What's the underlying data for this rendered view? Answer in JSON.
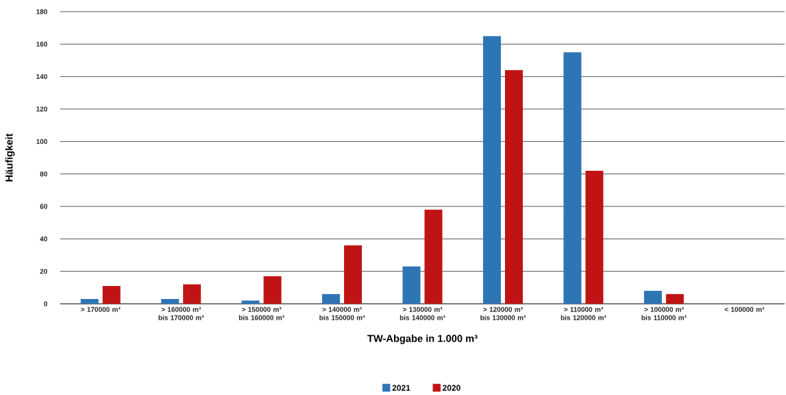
{
  "chart_data": {
    "type": "bar",
    "xlabel": "TW-Abgabe in 1.000 m³",
    "ylabel": "Häufigkeit",
    "categories": [
      "> 170000 m³",
      "> 160000 m³ bis 170000 m³",
      "> 150000 m³ bis 160000 m³",
      "> 140000 m³ bis 150000 m³",
      "> 130000 m³ bis 140000 m³",
      "> 120000 m³ bis 130000 m³",
      "> 110000 m³ bis 120000 m³",
      "> 100000 m³ bis 110000 m³",
      "< 100000 m³"
    ],
    "series": [
      {
        "name": "2021",
        "color": "#2e75b6",
        "values": [
          3,
          3,
          2,
          6,
          23,
          165,
          155,
          8,
          0
        ]
      },
      {
        "name": "2020",
        "color": "#c01414",
        "values": [
          11,
          12,
          17,
          36,
          58,
          144,
          82,
          6,
          0
        ]
      }
    ],
    "ylim": [
      0,
      180
    ],
    "yticks": [
      0,
      20,
      40,
      60,
      80,
      100,
      120,
      140,
      160,
      180
    ],
    "grid": "y",
    "legend": "bottom"
  }
}
